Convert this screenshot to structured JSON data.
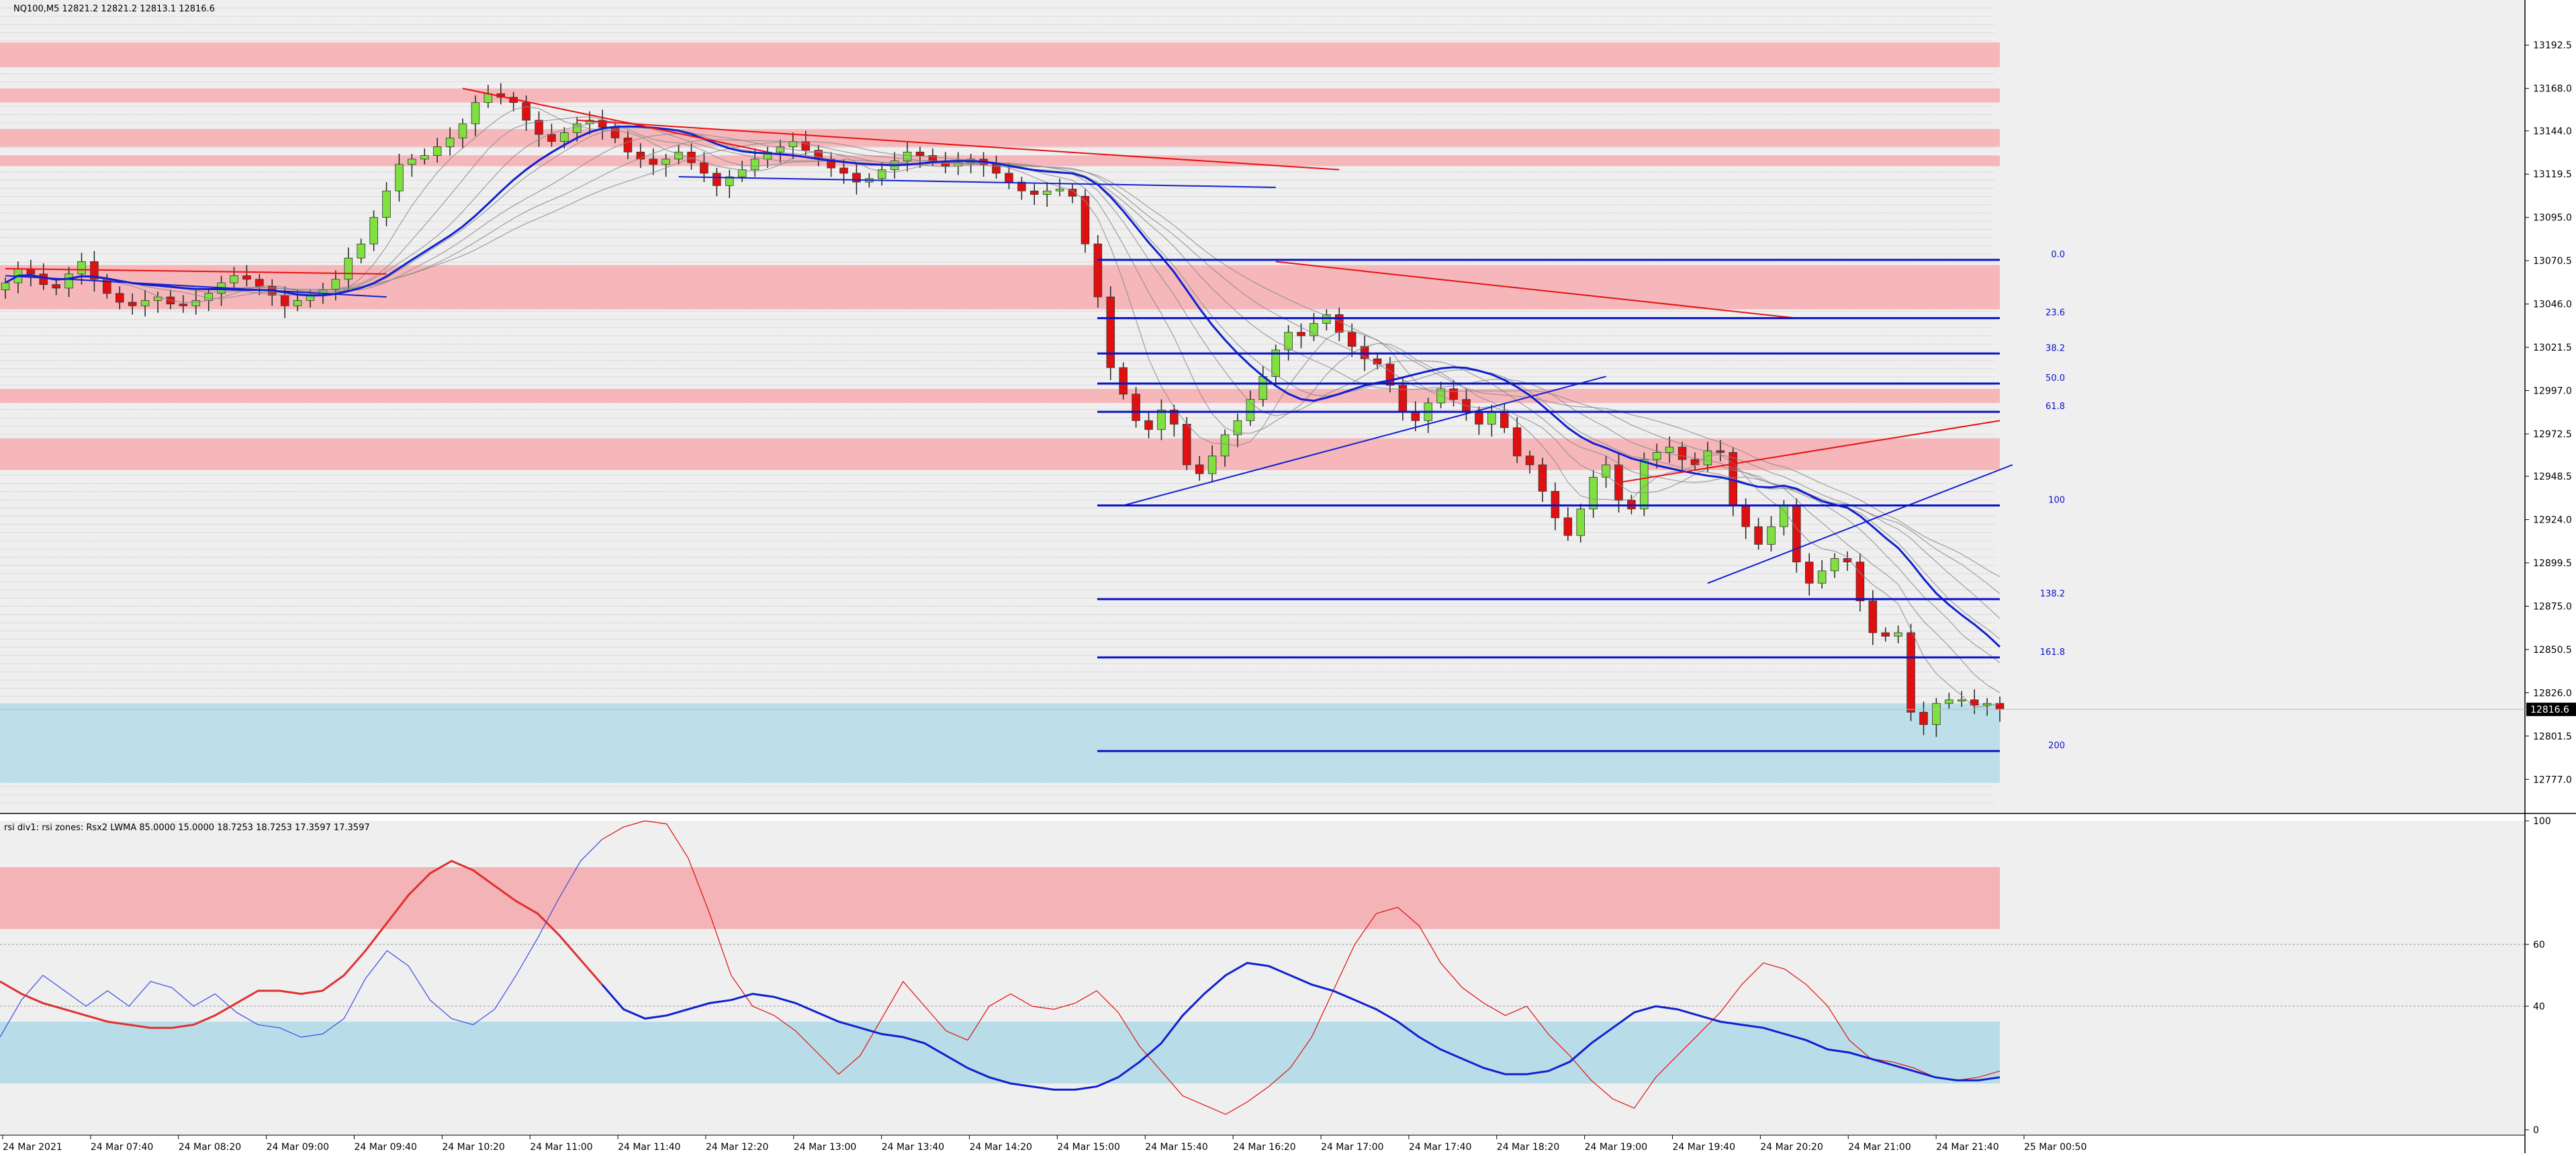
{
  "header": {
    "symbol_line": "NQ100,M5  12821.2 12821.2 12813.1 12816.6",
    "indicator_line": "rsi div1: rsi zones: Rsx2 LWMA 85.0000 15.0000 18.7253 18.7253 17.3597 17.3597"
  },
  "colors": {
    "background": "#ffffff",
    "chart_bg": "#efefef",
    "bull": "#7fe040",
    "bear": "#e01010",
    "supply_zone": "#f4b3b6",
    "demand_zone": "#b9dde8",
    "fib_line": "#0a12c8",
    "trend_red": "#e81010",
    "trend_blue": "#1020d0"
  },
  "chart_data": [
    {
      "type": "candlestick",
      "timeframe": "M5",
      "last_price": "12816.6",
      "y_range": [
        12760,
        13215
      ],
      "y_ticks": [
        "13192.5",
        "13168.0",
        "13144.0",
        "13119.5",
        "13095.0",
        "13070.5",
        "13046.0",
        "13021.5",
        "12997.0",
        "12972.5",
        "12948.5",
        "12924.0",
        "12899.5",
        "12875.0",
        "12850.5",
        "12826.0",
        "12801.5",
        "12777.0"
      ],
      "x_ticks": [
        "24 Mar 2021",
        "24 Mar 07:40",
        "24 Mar 08:20",
        "24 Mar 09:00",
        "24 Mar 09:40",
        "24 Mar 10:20",
        "24 Mar 11:00",
        "24 Mar 11:40",
        "24 Mar 12:20",
        "24 Mar 13:00",
        "24 Mar 13:40",
        "24 Mar 14:20",
        "24 Mar 15:00",
        "24 Mar 15:40",
        "24 Mar 16:20",
        "24 Mar 17:00",
        "24 Mar 17:40",
        "24 Mar 18:20",
        "24 Mar 19:00",
        "24 Mar 19:40",
        "24 Mar 20:20",
        "24 Mar 21:00",
        "24 Mar 21:40",
        "25 Mar 00:50"
      ],
      "closes": [
        13058,
        13066,
        13063,
        13057,
        13055,
        13063,
        13070,
        13060,
        13052,
        13047,
        13045,
        13048,
        13050,
        13046,
        13045,
        13048,
        13052,
        13058,
        13062,
        13060,
        13056,
        13051,
        13045,
        13048,
        13051,
        13054,
        13060,
        13072,
        13080,
        13095,
        13110,
        13125,
        13128,
        13130,
        13135,
        13140,
        13148,
        13160,
        13165,
        13163,
        13160,
        13150,
        13142,
        13138,
        13143,
        13148,
        13150,
        13146,
        13140,
        13132,
        13128,
        13125,
        13128,
        13132,
        13126,
        13120,
        13113,
        13118,
        13122,
        13128,
        13132,
        13135,
        13138,
        13133,
        13128,
        13123,
        13120,
        13115,
        13117,
        13122,
        13127,
        13132,
        13130,
        13127,
        13124,
        13126,
        13128,
        13125,
        13120,
        13115,
        13110,
        13108,
        13110,
        13111,
        13107,
        13080,
        13050,
        13010,
        12995,
        12980,
        12975,
        12986,
        12978,
        12955,
        12950,
        12960,
        12972,
        12980,
        12992,
        13005,
        13020,
        13030,
        13028,
        13035,
        13040,
        13030,
        13022,
        13015,
        13012,
        13000,
        12985,
        12980,
        12990,
        12998,
        12992,
        12985,
        12978,
        12985,
        12976,
        12960,
        12955,
        12940,
        12925,
        12915,
        12930,
        12948,
        12955,
        12935,
        12930,
        12958,
        12962,
        12965,
        12958,
        12955,
        12963,
        12962,
        12932,
        12920,
        12910,
        12920,
        12932,
        12900,
        12888,
        12895,
        12902,
        12900,
        12878,
        12860,
        12858,
        12860,
        12815,
        12808,
        12820,
        12822,
        12822,
        12819,
        12820,
        12816.6
      ],
      "supply_zones": [
        [
          13180,
          13194
        ],
        [
          13160,
          13168
        ],
        [
          13135,
          13145
        ],
        [
          13124,
          13130
        ],
        [
          13043,
          13068
        ],
        [
          12990,
          12998
        ],
        [
          12952,
          12970
        ]
      ],
      "demand_zones": [
        [
          12775,
          12820
        ]
      ],
      "fib_levels": [
        {
          "label": "0.0",
          "price": 13071
        },
        {
          "label": "23.6",
          "price": 13038
        },
        {
          "label": "38.2",
          "price": 13018
        },
        {
          "label": "50.0",
          "price": 13001
        },
        {
          "label": "61.8",
          "price": 12985
        },
        {
          "label": "100",
          "price": 12932
        },
        {
          "label": "138.2",
          "price": 12879
        },
        {
          "label": "161.8",
          "price": 12846
        },
        {
          "label": "200",
          "price": 12793
        }
      ]
    },
    {
      "type": "line",
      "title": "rsi div1: rsi zones: Rsx2 LWMA 85.0000 15.0000 18.7253 18.7253 17.3597 17.3597",
      "y_range": [
        0,
        100
      ],
      "y_ticks": [
        "100",
        "60",
        "40",
        "0"
      ],
      "zones": {
        "overbought": [
          65,
          85
        ],
        "oversold": [
          15,
          35
        ]
      },
      "series": [
        {
          "values": [
            30,
            42,
            50,
            45,
            40,
            45,
            40,
            48,
            46,
            40,
            44,
            38,
            34,
            33,
            30,
            31,
            36,
            49,
            58,
            53,
            42,
            36,
            34,
            39,
            50,
            62,
            75,
            87,
            94,
            98,
            100,
            99,
            88,
            70,
            50,
            40,
            37,
            32,
            25,
            18,
            24,
            36,
            48,
            40,
            32,
            29,
            40,
            44,
            40,
            39,
            41,
            45,
            38,
            27,
            19,
            11,
            8,
            5,
            9,
            14,
            20,
            30,
            45,
            60,
            70,
            72,
            66,
            54,
            46,
            41,
            37,
            40,
            31,
            24,
            16,
            10,
            7,
            17,
            24,
            31,
            38,
            47,
            54,
            52,
            47,
            40,
            29,
            23,
            22,
            20,
            17,
            16,
            17,
            19
          ]
        },
        {
          "values": [
            48,
            44,
            41,
            39,
            37,
            35,
            34,
            33,
            33,
            34,
            37,
            41,
            45,
            45,
            44,
            45,
            50,
            58,
            67,
            76,
            83,
            87,
            84,
            79,
            74,
            70,
            63,
            55,
            47,
            39,
            36,
            37,
            39,
            41,
            42,
            44,
            43,
            41,
            38,
            35,
            33,
            31,
            30,
            28,
            24,
            20,
            17,
            15,
            14,
            13,
            13,
            14,
            17,
            22,
            28,
            37,
            44,
            50,
            54,
            53,
            50,
            47,
            45,
            42,
            39,
            35,
            30,
            26,
            23,
            20,
            18,
            18,
            19,
            22,
            28,
            33,
            38,
            40,
            39,
            37,
            35,
            34,
            33,
            31,
            29,
            26,
            25,
            23,
            21,
            19,
            17,
            16,
            16,
            17
          ]
        }
      ]
    }
  ]
}
